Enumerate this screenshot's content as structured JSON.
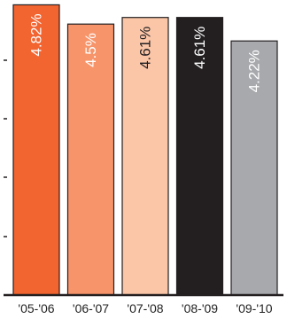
{
  "chart_data": {
    "type": "bar",
    "categories": [
      "'05-'06",
      "'06-'07",
      "'07-'08",
      "'08-'09",
      "'09-'10"
    ],
    "values": [
      4.82,
      4.5,
      4.61,
      4.61,
      4.22
    ],
    "value_labels": [
      "4.82%",
      "4.5%",
      "4.61%",
      "4.61%",
      "4.22%"
    ],
    "bar_colors": [
      "#f26430",
      "#f7946a",
      "#fbc6a8",
      "#231f20",
      "#a7a9ac"
    ],
    "label_colors": [
      "#ffffff",
      "#ffffff",
      "#231f20",
      "#ffffff",
      "#ffffff"
    ],
    "ylim": [
      0,
      4.9
    ],
    "grid": false,
    "title": "",
    "xlabel": "",
    "ylabel": ""
  }
}
